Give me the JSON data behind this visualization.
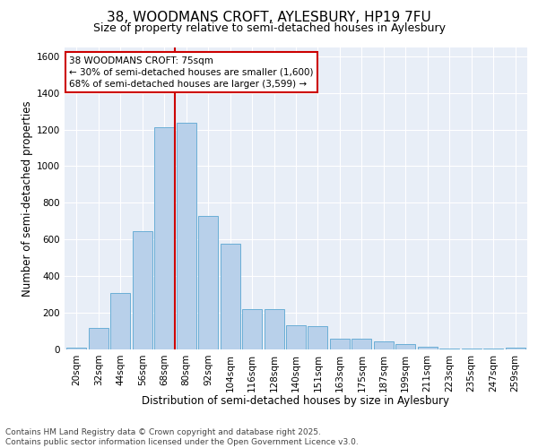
{
  "title_line1": "38, WOODMANS CROFT, AYLESBURY, HP19 7FU",
  "title_line2": "Size of property relative to semi-detached houses in Aylesbury",
  "xlabel": "Distribution of semi-detached houses by size in Aylesbury",
  "ylabel": "Number of semi-detached properties",
  "categories": [
    "20sqm",
    "32sqm",
    "44sqm",
    "56sqm",
    "68sqm",
    "80sqm",
    "92sqm",
    "104sqm",
    "116sqm",
    "128sqm",
    "140sqm",
    "151sqm",
    "163sqm",
    "175sqm",
    "187sqm",
    "199sqm",
    "211sqm",
    "223sqm",
    "235sqm",
    "247sqm",
    "259sqm"
  ],
  "values": [
    10,
    115,
    310,
    645,
    1210,
    1235,
    730,
    575,
    220,
    220,
    130,
    125,
    60,
    60,
    45,
    28,
    15,
    5,
    5,
    5,
    10
  ],
  "bar_color": "#b8d0ea",
  "bar_edge_color": "#6aaed6",
  "vline_color": "#cc0000",
  "annotation_text": "38 WOODMANS CROFT: 75sqm\n← 30% of semi-detached houses are smaller (1,600)\n68% of semi-detached houses are larger (3,599) →",
  "annotation_box_color": "white",
  "annotation_box_edge": "#cc0000",
  "ylim": [
    0,
    1650
  ],
  "yticks": [
    0,
    200,
    400,
    600,
    800,
    1000,
    1200,
    1400,
    1600
  ],
  "background_color": "#e8eef7",
  "footer_text": "Contains HM Land Registry data © Crown copyright and database right 2025.\nContains public sector information licensed under the Open Government Licence v3.0.",
  "title_fontsize": 11,
  "subtitle_fontsize": 9,
  "axis_label_fontsize": 8.5,
  "tick_fontsize": 7.5,
  "footer_fontsize": 6.5,
  "annotation_fontsize": 7.5,
  "vline_x_index": 4
}
